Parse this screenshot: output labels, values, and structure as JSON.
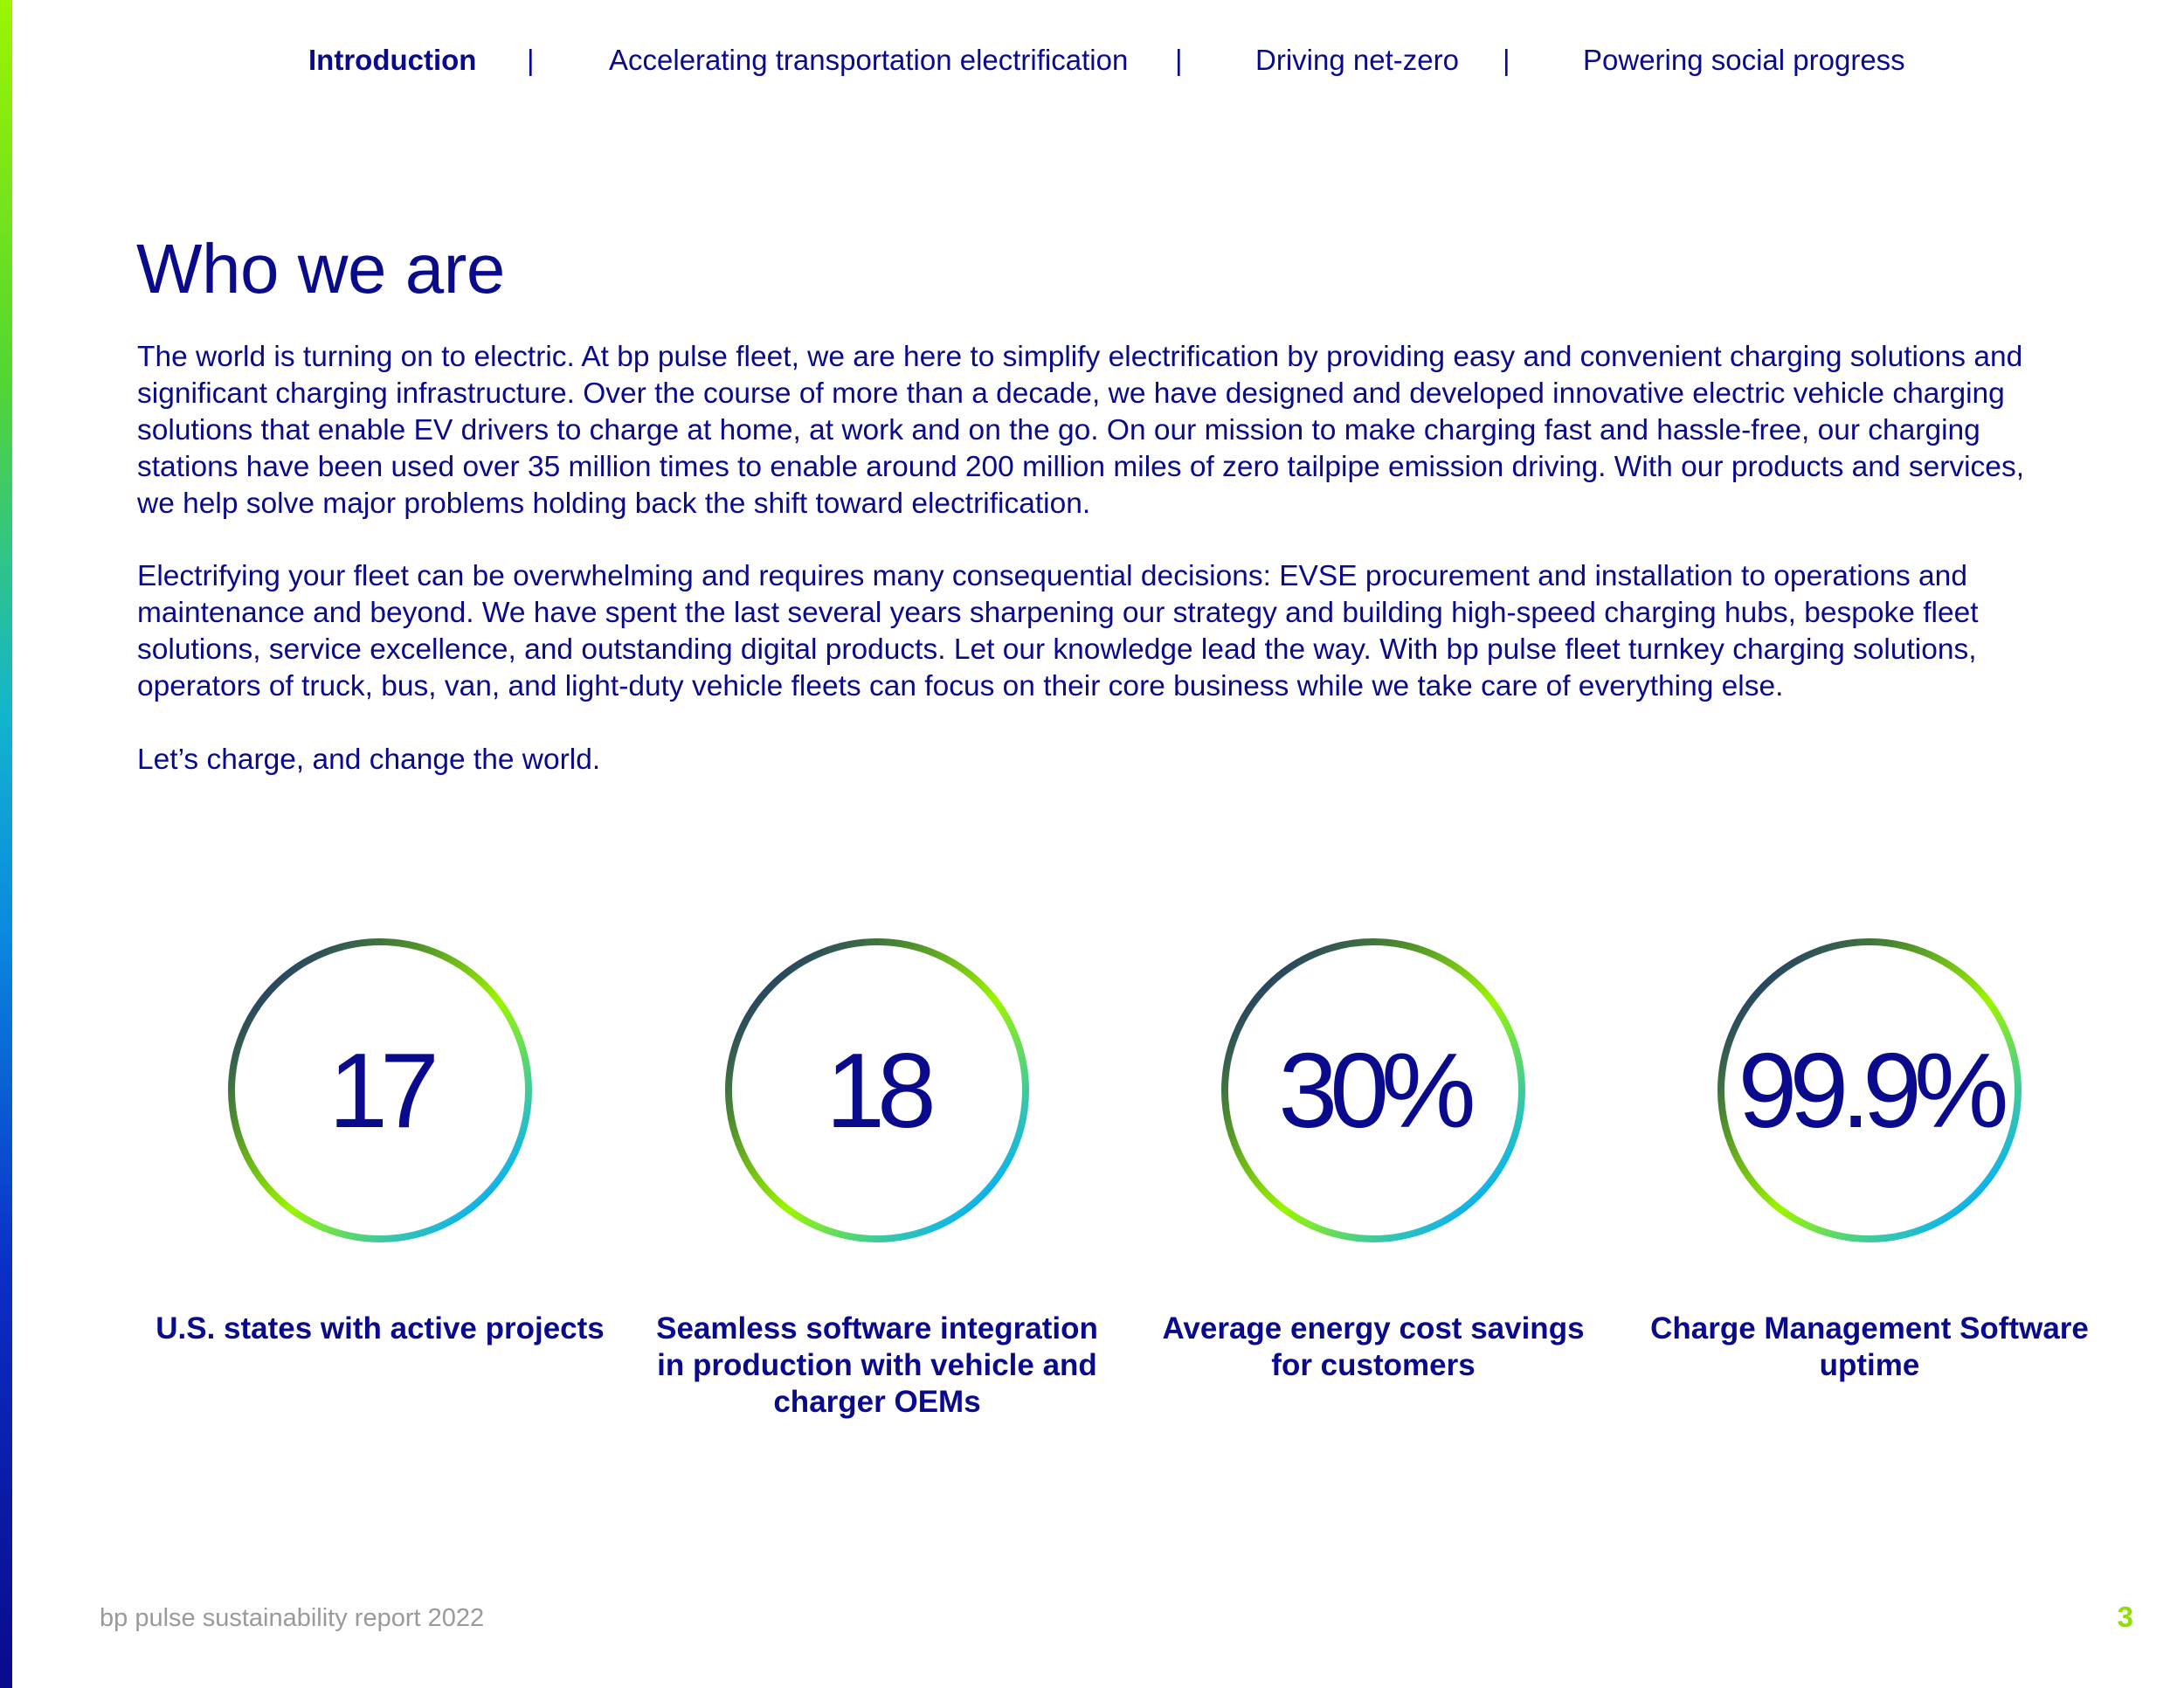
{
  "nav": {
    "items": [
      {
        "label": "Introduction",
        "active": true
      },
      {
        "label": "Accelerating transportation electrification",
        "active": false
      },
      {
        "label": "Driving net-zero",
        "active": false
      },
      {
        "label": "Powering social progress",
        "active": false
      }
    ],
    "separator": "|"
  },
  "page": {
    "title": "Who we are",
    "paragraphs": [
      "The world is turning on to electric. At bp pulse fleet, we are here to simplify electrification by providing easy and convenient charging solutions and significant charging infrastructure. Over the course of more than a decade, we have designed and developed innovative electric vehicle charging solutions that enable EV drivers to charge at home, at work and on the go. On our mission to make charging fast and hassle-free, our charging stations have been used over 35 million times to enable around 200 million miles of zero tailpipe emission driving. With our products and services, we help solve major problems holding back the shift toward electrification.",
      "Electrifying your fleet can be overwhelming and requires many consequential decisions: EVSE procurement and installation to operations and maintenance and beyond. We have spent the last several years sharpening our strategy and building high-speed charging hubs, bespoke fleet solutions, service excellence, and outstanding digital products. Let our knowledge lead the way. With bp pulse fleet turnkey charging solutions, operators of truck, bus, van, and light-duty vehicle fleets can focus on their core business while we take care of everything else.",
      "Let’s charge, and change the world."
    ]
  },
  "stats": [
    {
      "value": "17",
      "label": "U.S. states with active projects"
    },
    {
      "value": "18",
      "label": "Seamless software integration in production with vehicle and charger OEMs"
    },
    {
      "value": "30%",
      "label": "Average energy cost savings for customers"
    },
    {
      "value": "99.9%",
      "label": "Charge Management Software uptime"
    }
  ],
  "footer": {
    "report_name": "bp pulse sustainability report 2022",
    "page_number": "3"
  },
  "colors": {
    "primary_text": "#0a0a8c",
    "accent_green": "#9cf500",
    "accent_cyan": "#12b6e6",
    "footer_grey": "#9a9a9a"
  }
}
